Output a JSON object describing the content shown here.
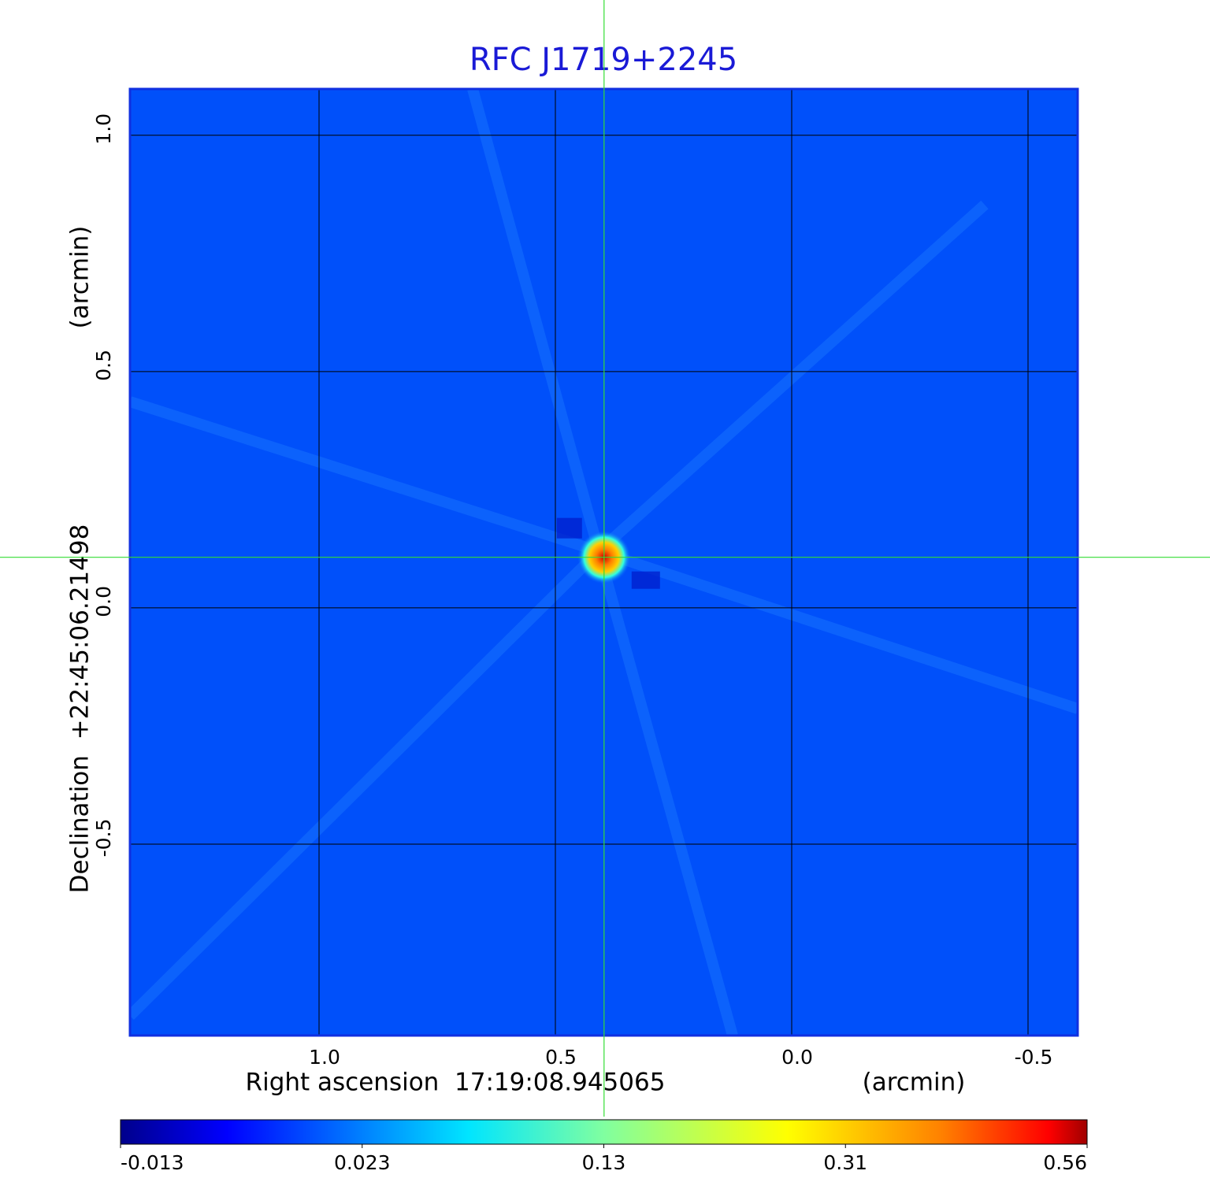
{
  "chart_data": {
    "type": "image",
    "title": "RFC J1719+2245",
    "x_label": "Right ascension  17:19:08.945065",
    "x_unit": "(arcmin)",
    "y_label": "Declination  +22:45:06.21498",
    "y_unit": "(arcmin)",
    "xlim": [
      1.4,
      -0.605
    ],
    "ylim": [
      -0.905,
      1.098
    ],
    "xticks": [
      {
        "value": 1,
        "label": "1.0"
      },
      {
        "value": 0.5,
        "label": "0.5"
      },
      {
        "value": 0,
        "label": "0.0"
      },
      {
        "value": -0.5,
        "label": "-0.5"
      }
    ],
    "yticks": [
      {
        "value": 1,
        "label": "1.0"
      },
      {
        "value": 0.5,
        "label": "0.5"
      },
      {
        "value": 0,
        "label": "0.0"
      },
      {
        "value": -0.5,
        "label": "-0.5"
      }
    ],
    "grid": true,
    "crosshair": {
      "x": 0.397,
      "y": 0.107,
      "color": "#33dd33"
    },
    "colorbar": {
      "lim": [
        -0.013,
        0.56
      ],
      "ticks": [
        -0.013,
        0.023,
        0.13,
        0.31,
        0.56
      ]
    }
  }
}
